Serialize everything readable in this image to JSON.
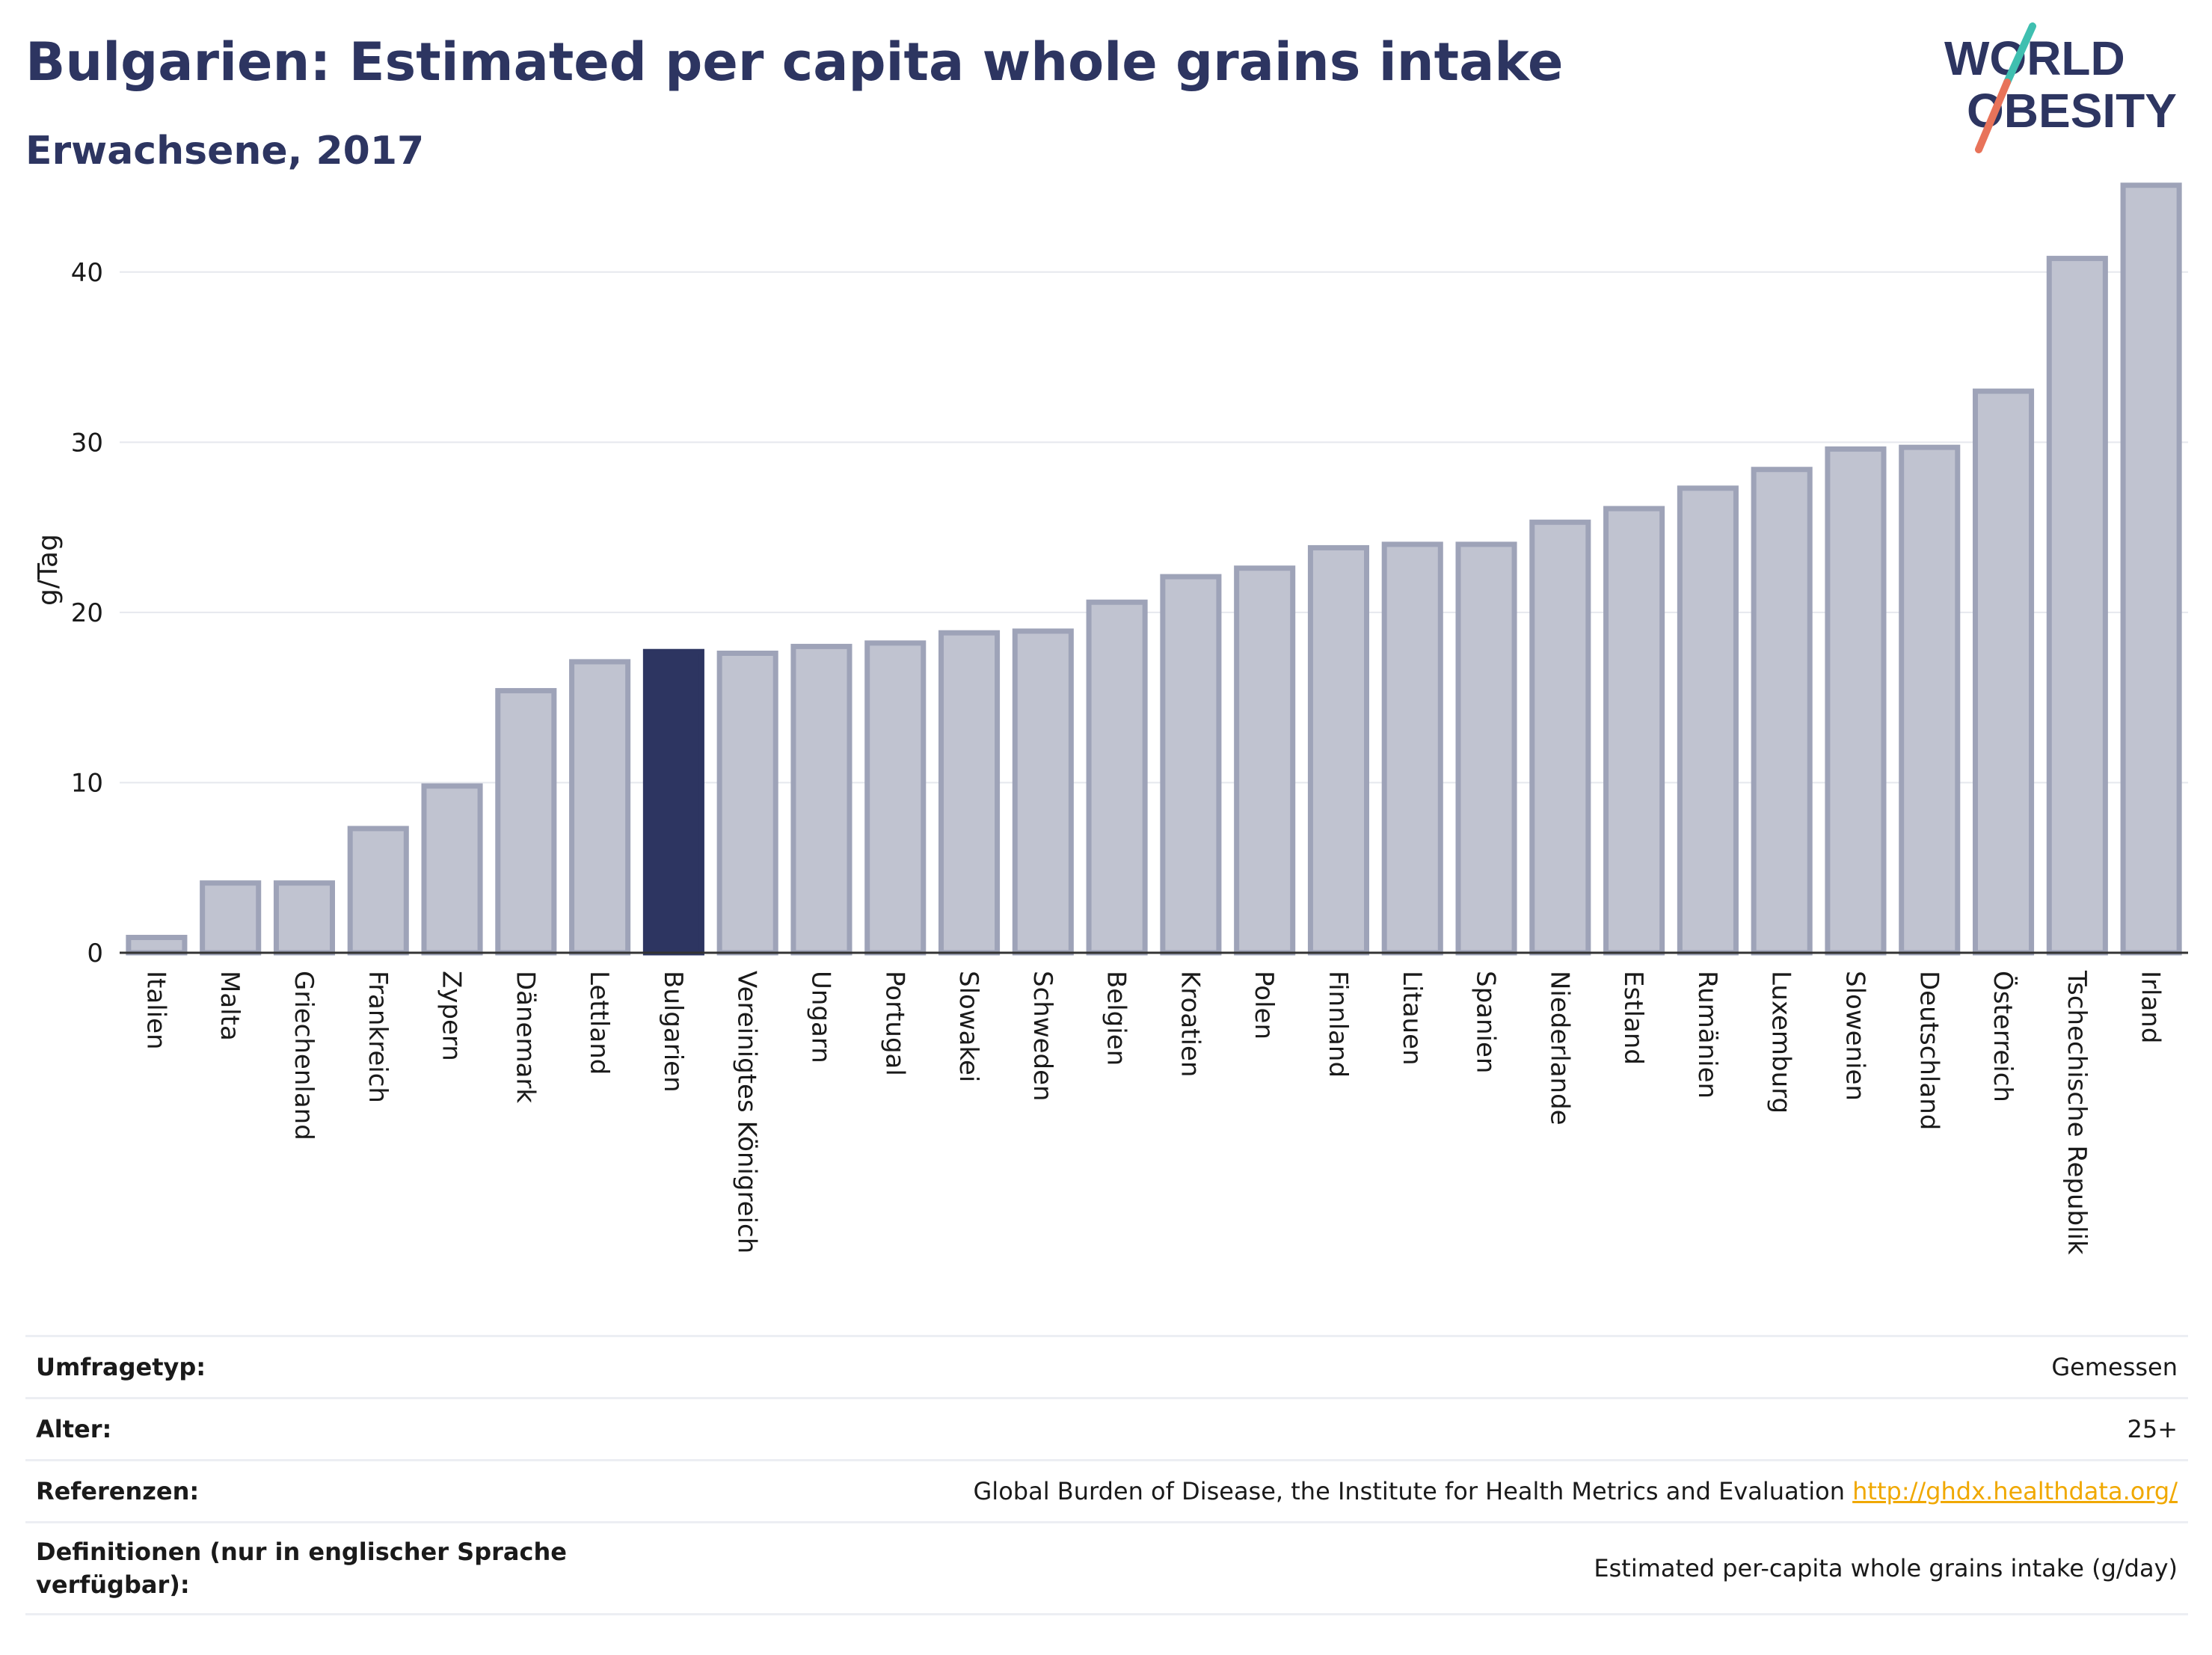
{
  "header": {
    "title": "Bulgarien: Estimated per capita whole grains intake",
    "subtitle": "Erwachsene, 2017"
  },
  "logo": {
    "line1": "WORLD",
    "line2": "OBESITY"
  },
  "colors": {
    "highlight": "#2d3561",
    "bar_fill": "#c0c3d0",
    "bar_stroke": "#9ea3b8",
    "logo_teal": "#3fbfb0",
    "logo_coral": "#e8735a",
    "link": "#f0a800"
  },
  "chart_data": {
    "type": "bar",
    "ylabel": "g/Tag",
    "ylim": [
      0,
      45
    ],
    "yticks": [
      0,
      10,
      20,
      30,
      40
    ],
    "grid": true,
    "highlight": "Bulgarien",
    "categories": [
      "Italien",
      "Malta",
      "Griechenland",
      "Frankreich",
      "Zypern",
      "Dänemark",
      "Lettland",
      "Bulgarien",
      "Vereinigtes Königreich",
      "Ungarn",
      "Portugal",
      "Slowakei",
      "Schweden",
      "Belgien",
      "Kroatien",
      "Polen",
      "Finnland",
      "Litauen",
      "Spanien",
      "Niederlande",
      "Estland",
      "Rumänien",
      "Luxemburg",
      "Slowenien",
      "Deutschland",
      "Österreich",
      "Tschechische Republik",
      "Irland"
    ],
    "values": [
      0.9,
      4.1,
      4.1,
      7.3,
      9.8,
      15.4,
      17.1,
      17.7,
      17.6,
      18.0,
      18.2,
      18.8,
      18.9,
      20.6,
      22.1,
      22.6,
      23.8,
      24.0,
      24.0,
      25.3,
      26.1,
      27.3,
      28.4,
      29.6,
      29.7,
      33.0,
      40.8,
      45.1
    ]
  },
  "info": {
    "survey_label": "Umfragetyp:",
    "survey_value": "Gemessen",
    "age_label": "Alter:",
    "age_value": "25+",
    "ref_label": "Referenzen:",
    "ref_value": "Global Burden of Disease, the Institute for Health Metrics and Evaluation ",
    "ref_link": "http://ghdx.healthdata.org/",
    "def_label": "Definitionen (nur in englischer Sprache verfügbar):",
    "def_value": "Estimated per-capita whole grains intake (g/day)"
  }
}
